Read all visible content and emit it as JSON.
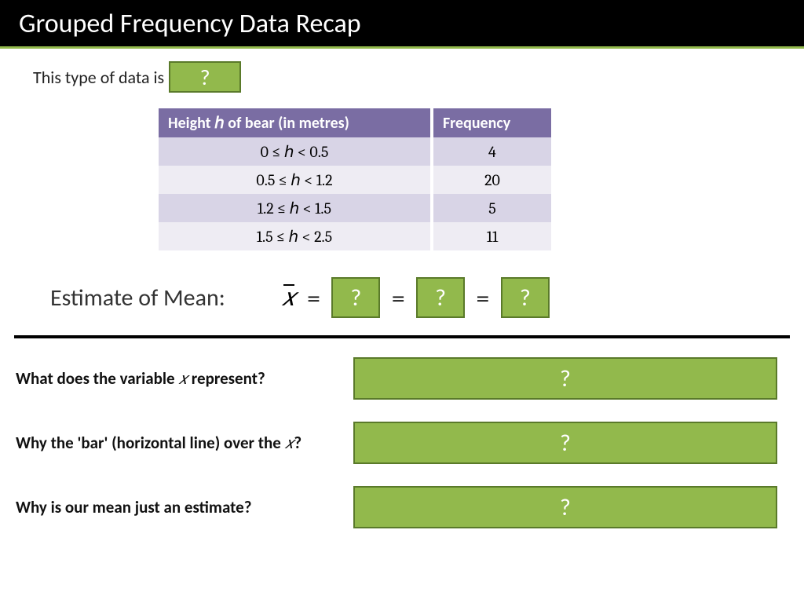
{
  "colors": {
    "header_bg": "#000000",
    "accent": "#92b94c",
    "accent_border": "#5a7a2a",
    "table_header_bg": "#7a6da3",
    "row_odd": "#d8d4e6",
    "row_even": "#eeecf3",
    "text": "#222222"
  },
  "header": {
    "title": "Grouped Frequency Data Recap"
  },
  "intro": {
    "label": "This type of data is",
    "reveal": "?"
  },
  "table": {
    "col1": "Height ℎ of bear (in metres)",
    "col2": "Frequency",
    "rows": [
      {
        "range": "0 ≤ ℎ < 0.5",
        "freq": "4"
      },
      {
        "range": "0.5 ≤ ℎ < 1.2",
        "freq": "20"
      },
      {
        "range": "1.2 ≤ ℎ < 1.5",
        "freq": "5"
      },
      {
        "range": "1.5 ≤ ℎ < 2.5",
        "freq": "11"
      }
    ]
  },
  "mean": {
    "label": "Estimate of Mean:",
    "xbar": "𝑥",
    "eq": "=",
    "box1": "?",
    "box2": "?",
    "box3": "?"
  },
  "qa": {
    "q1_pre": "What does the variable ",
    "q1_x": "𝑥",
    "q1_post": " represent?",
    "a1": "?",
    "q2_pre": "Why the 'bar' (horizontal line) over the ",
    "q2_x": "𝑥",
    "q2_post": "?",
    "a2": "?",
    "q3": "Why is our mean just an estimate?",
    "a3": "?"
  }
}
